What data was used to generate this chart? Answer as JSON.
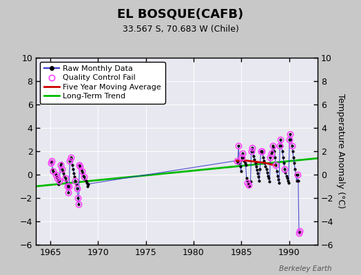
{
  "title": "EL BOSQUE(CAFB)",
  "subtitle": "33.567 S, 70.683 W (Chile)",
  "ylabel": "Temperature Anomaly (°C)",
  "watermark": "Berkeley Earth",
  "xlim": [
    1963.5,
    1993.0
  ],
  "ylim": [
    -6,
    10
  ],
  "yticks": [
    -6,
    -4,
    -2,
    0,
    2,
    4,
    6,
    8,
    10
  ],
  "xticks": [
    1965,
    1970,
    1975,
    1980,
    1985,
    1990
  ],
  "bg_color": "#c8c8c8",
  "plot_bg_color": "#e8e8e8",
  "raw_monthly_x": [
    1965.04,
    1965.12,
    1965.21,
    1965.29,
    1965.38,
    1965.46,
    1965.54,
    1965.62,
    1965.71,
    1965.79,
    1965.88,
    1965.96,
    1966.04,
    1966.12,
    1966.21,
    1966.29,
    1966.38,
    1966.46,
    1966.54,
    1966.62,
    1966.71,
    1966.79,
    1966.88,
    1966.96,
    1967.04,
    1967.12,
    1967.21,
    1967.29,
    1967.38,
    1967.46,
    1967.54,
    1967.62,
    1967.71,
    1967.79,
    1967.88,
    1967.96,
    1968.04,
    1968.12,
    1968.21,
    1968.29,
    1968.38,
    1968.46,
    1968.54,
    1968.62,
    1968.71,
    1968.79,
    1968.88,
    1968.96,
    1984.54,
    1984.62,
    1984.71,
    1984.79,
    1984.88,
    1984.96,
    1985.04,
    1985.12,
    1985.21,
    1985.29,
    1985.38,
    1985.46,
    1985.54,
    1985.62,
    1985.71,
    1985.79,
    1985.88,
    1985.96,
    1986.04,
    1986.12,
    1986.21,
    1986.29,
    1986.38,
    1986.46,
    1986.54,
    1986.62,
    1986.71,
    1986.79,
    1986.88,
    1986.96,
    1987.04,
    1987.12,
    1987.21,
    1987.29,
    1987.38,
    1987.46,
    1987.54,
    1987.62,
    1987.71,
    1987.79,
    1987.88,
    1987.96,
    1988.04,
    1988.12,
    1988.21,
    1988.29,
    1988.38,
    1988.46,
    1988.54,
    1988.62,
    1988.71,
    1988.79,
    1988.88,
    1988.96,
    1989.04,
    1989.12,
    1989.21,
    1989.29,
    1989.38,
    1989.46,
    1989.54,
    1989.62,
    1989.71,
    1989.79,
    1989.88,
    1989.96,
    1990.04,
    1990.12,
    1990.21,
    1990.29,
    1990.38,
    1990.46,
    1990.54,
    1990.62,
    1990.71,
    1990.79,
    1990.88,
    1990.96,
    1991.04,
    1991.12
  ],
  "raw_monthly_y": [
    1.0,
    1.2,
    0.5,
    0.3,
    0.2,
    0.1,
    0.0,
    -0.2,
    -0.3,
    -0.5,
    -0.8,
    -0.5,
    0.8,
    1.0,
    0.5,
    0.3,
    0.1,
    -0.1,
    -0.3,
    -0.5,
    -0.8,
    -1.0,
    -1.5,
    -1.0,
    1.2,
    1.5,
    1.3,
    0.8,
    0.5,
    0.1,
    -0.2,
    -0.5,
    -0.8,
    -1.2,
    -2.0,
    -2.5,
    0.8,
    0.7,
    0.5,
    0.3,
    0.1,
    -0.1,
    -0.2,
    -0.4,
    -0.5,
    -0.7,
    -1.0,
    -0.8,
    1.2,
    1.0,
    2.5,
    1.0,
    0.7,
    0.3,
    1.5,
    1.8,
    1.5,
    1.2,
    1.0,
    0.8,
    -0.3,
    -0.5,
    -0.7,
    -0.9,
    -1.0,
    -0.6,
    2.0,
    2.3,
    2.0,
    1.6,
    1.3,
    1.0,
    0.7,
    0.4,
    0.1,
    -0.2,
    -0.5,
    0.5,
    2.0,
    2.0,
    1.8,
    1.5,
    1.2,
    1.0,
    0.7,
    0.5,
    0.2,
    -0.1,
    -0.3,
    -0.6,
    1.5,
    1.8,
    2.0,
    2.5,
    2.3,
    2.0,
    1.5,
    0.8,
    0.3,
    -0.1,
    -0.4,
    -0.7,
    2.5,
    3.0,
    2.5,
    2.0,
    1.5,
    1.0,
    0.5,
    0.2,
    -0.1,
    -0.3,
    -0.5,
    -0.7,
    3.0,
    3.5,
    3.0,
    2.5,
    2.0,
    1.5,
    1.0,
    0.5,
    0.0,
    -0.5,
    0.0,
    -0.5,
    -5.0,
    -4.8
  ],
  "qc_fail_x": [
    1965.04,
    1965.12,
    1965.29,
    1965.54,
    1965.71,
    1965.96,
    1966.04,
    1966.21,
    1966.54,
    1966.79,
    1966.88,
    1966.96,
    1967.04,
    1967.12,
    1967.62,
    1967.79,
    1967.88,
    1967.96,
    1968.04,
    1968.12,
    1968.29,
    1968.54,
    1984.54,
    1984.71,
    1985.04,
    1985.12,
    1985.62,
    1985.79,
    1986.04,
    1986.12,
    1987.04,
    1987.12,
    1988.04,
    1988.12,
    1988.29,
    1988.62,
    1989.04,
    1989.12,
    1989.54,
    1990.04,
    1990.12,
    1990.29,
    1990.88,
    1991.04,
    1991.12
  ],
  "qc_fail_y": [
    1.0,
    1.2,
    0.3,
    0.0,
    -0.3,
    -0.5,
    0.8,
    0.5,
    -0.3,
    -1.0,
    -1.5,
    -1.0,
    1.2,
    1.5,
    -0.5,
    -1.2,
    -2.0,
    -2.5,
    0.8,
    0.7,
    0.3,
    -0.2,
    1.2,
    2.5,
    1.5,
    1.8,
    -0.7,
    -0.9,
    2.0,
    2.3,
    2.0,
    2.0,
    1.5,
    1.8,
    2.5,
    0.8,
    2.5,
    3.0,
    0.5,
    3.0,
    3.5,
    2.5,
    0.0,
    -5.0,
    -4.8
  ],
  "trend_x": [
    1963.5,
    1993.0
  ],
  "trend_y": [
    -1.0,
    1.4
  ],
  "moving_avg_x": [
    1984.5,
    1985.5,
    1986.5,
    1987.5,
    1988.0,
    1988.5
  ],
  "moving_avg_y": [
    1.2,
    1.2,
    1.1,
    1.0,
    0.9,
    0.8
  ],
  "colors": {
    "raw_line": "#3333cc",
    "raw_dot": "#000000",
    "qc_fail": "#ff44ff",
    "moving_avg": "#cc0000",
    "trend": "#00bb00",
    "bg": "#c8c8c8",
    "plot_bg": "#e8e8f0"
  },
  "title_fontsize": 13,
  "subtitle_fontsize": 9,
  "tick_fontsize": 9,
  "legend_fontsize": 8
}
